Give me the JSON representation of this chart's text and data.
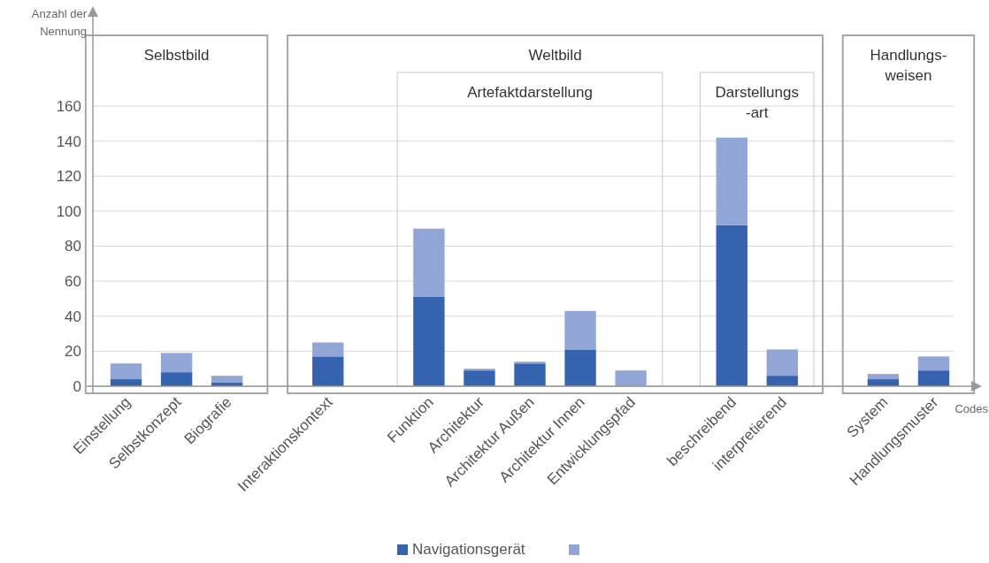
{
  "chart_data": {
    "type": "bar",
    "stacked": true,
    "ylabel": "Anzahl der\nNennung",
    "xlabel": "Codes",
    "categories": [
      "Einstellung",
      "Selbstkonzept",
      "Biografie",
      null,
      "Interaktionskontext",
      null,
      "Funktion",
      "Architektur",
      "Architektur Außen",
      "Architektur Innen",
      "Entwicklungspfad",
      null,
      "beschreibend",
      "interpretierend",
      null,
      "System",
      "Handlungsmuster"
    ],
    "series": [
      {
        "name": "Navigationsgerät",
        "color": "#3563ad",
        "values": [
          4,
          8,
          2,
          null,
          17,
          null,
          51,
          9,
          13,
          21,
          0,
          null,
          92,
          6,
          null,
          4,
          9
        ]
      },
      {
        "color": "#91a5d6",
        "values": [
          9,
          11,
          4,
          null,
          8,
          null,
          39,
          1,
          1,
          22,
          9,
          null,
          50,
          15,
          null,
          3,
          8
        ]
      }
    ],
    "ylim": [
      0,
      215
    ],
    "yticks": [
      0,
      20,
      40,
      60,
      80,
      100,
      120,
      140,
      160
    ],
    "grid": "y",
    "legend": "bottom",
    "annotations": [
      "Selbstbild",
      "Weltbild",
      "Artefaktdarstellung",
      "Darstellungs\n-art",
      "Handlungs-\nweisen"
    ]
  }
}
